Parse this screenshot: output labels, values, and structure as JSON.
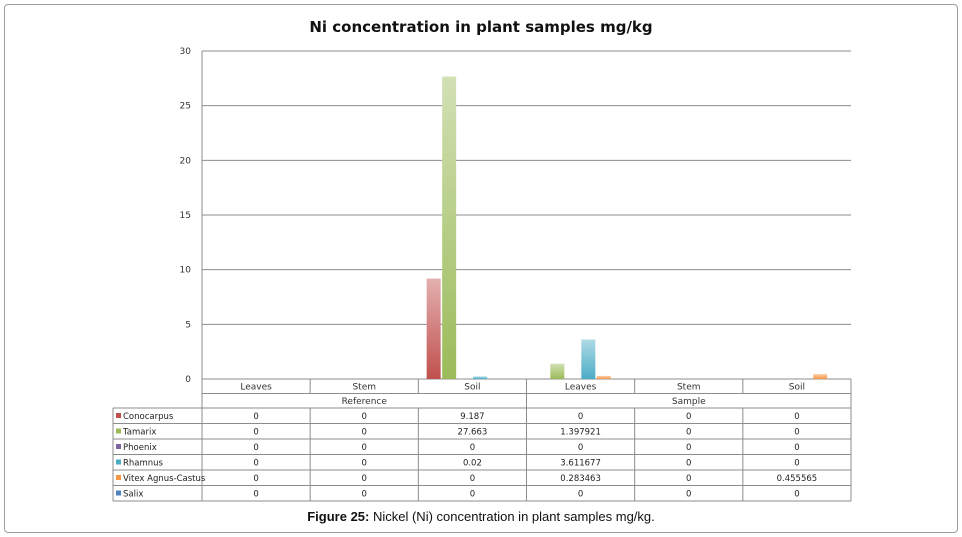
{
  "chart_data": {
    "type": "bar",
    "title": "Ni concentration in plant samples mg/kg",
    "ylim": [
      0,
      30
    ],
    "yticks": [
      0,
      5,
      10,
      15,
      20,
      25,
      30
    ],
    "grid": true,
    "groups": [
      {
        "label": "Reference",
        "categories": [
          "Leaves",
          "Stem",
          "Soil"
        ]
      },
      {
        "label": "Sample",
        "categories": [
          "Leaves",
          "Stem",
          "Soil"
        ]
      }
    ],
    "categories": [
      "Leaves",
      "Stem",
      "Soil",
      "Leaves",
      "Stem",
      "Soil"
    ],
    "series": [
      {
        "name": "Conocarpus",
        "color": "#c0504d",
        "values": [
          0,
          0,
          9.187,
          0,
          0,
          0
        ],
        "labels": [
          "0",
          "0",
          "9.187",
          "0",
          "0",
          "0"
        ]
      },
      {
        "name": "Tamarix",
        "color": "#9bbb59",
        "values": [
          0,
          0,
          27.663,
          1.397921,
          0,
          0
        ],
        "labels": [
          "0",
          "0",
          "27.663",
          "1.397921",
          "0",
          "0"
        ]
      },
      {
        "name": "Phoenix",
        "color": "#8064a2",
        "values": [
          0,
          0,
          0,
          0,
          0,
          0
        ],
        "labels": [
          "0",
          "0",
          "0",
          "0",
          "0",
          "0"
        ]
      },
      {
        "name": "Rhamnus",
        "color": "#4bacc6",
        "values": [
          0,
          0,
          0.02,
          3.611677,
          0,
          0
        ],
        "labels": [
          "0",
          "0",
          "0.02",
          "3.611677",
          "0",
          "0"
        ]
      },
      {
        "name": "Vitex Agnus-Castus",
        "color": "#f79646",
        "values": [
          0,
          0,
          0,
          0.283463,
          0,
          0.455565
        ],
        "labels": [
          "0",
          "0",
          "0",
          "0.283463",
          "0",
          "0.455565"
        ]
      },
      {
        "name": "Salix",
        "color": "#4f81bd",
        "values": [
          0,
          0,
          0,
          0,
          0,
          0
        ],
        "labels": [
          "0",
          "0",
          "0",
          "0",
          "0",
          "0"
        ]
      }
    ]
  },
  "caption": {
    "label": "Figure 25:",
    "text": " Nickel (Ni) concentration in plant samples mg/kg."
  }
}
